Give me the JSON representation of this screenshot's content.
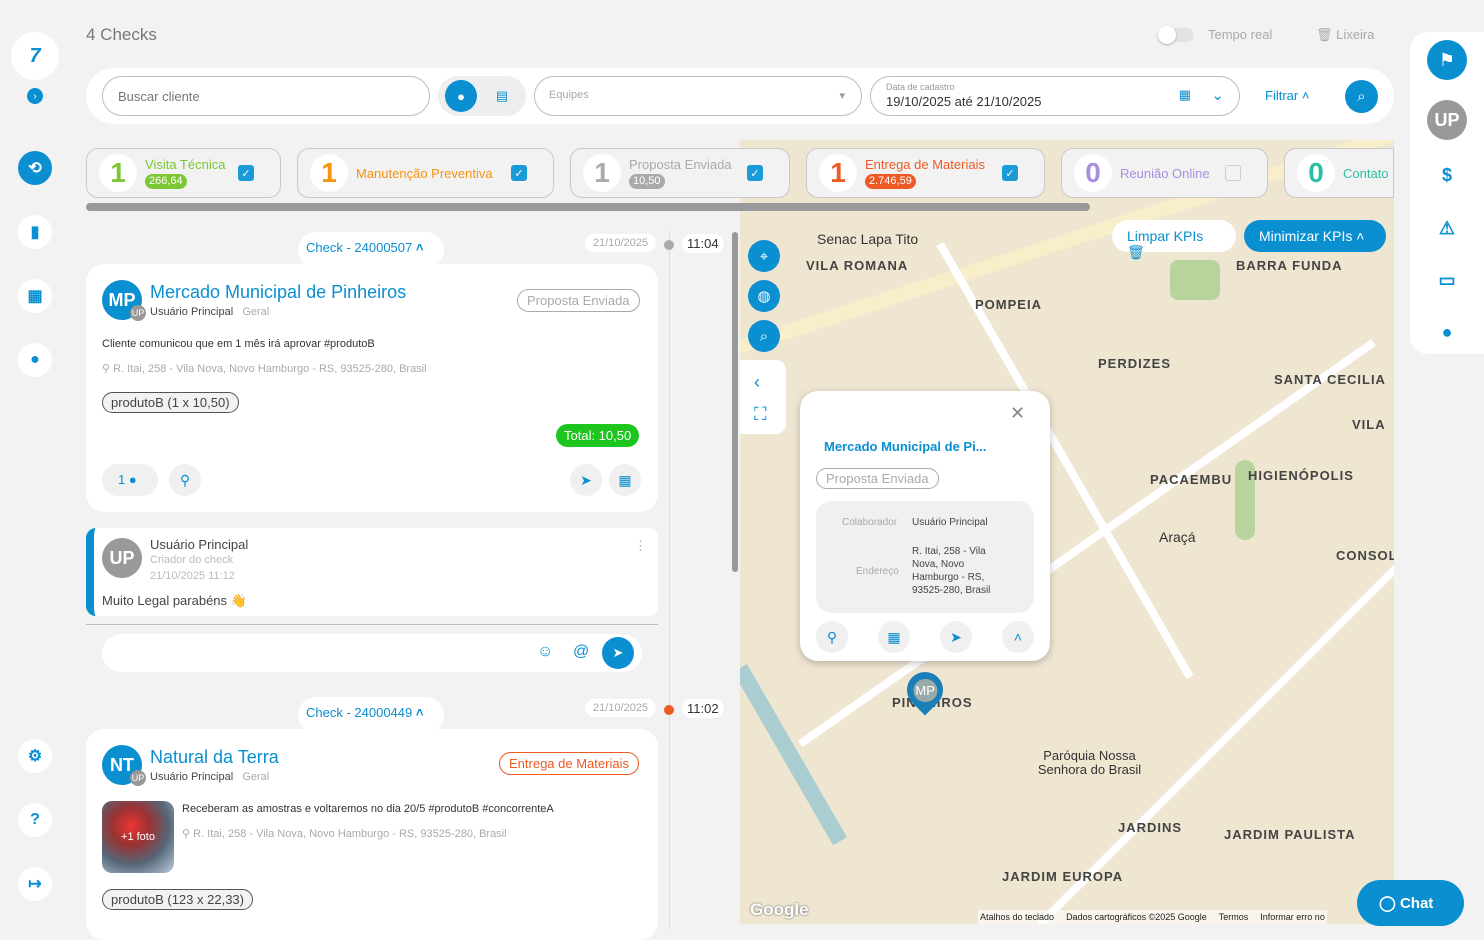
{
  "header": {
    "title": "4 Checks",
    "realtime_label": "Tempo real",
    "trash_label": "Lixeira"
  },
  "filters": {
    "search_placeholder": "Buscar cliente",
    "teams_placeholder": "Equipes",
    "date_label": "Data de cadastro",
    "date_value": "19/10/2025 até 21/10/2025",
    "filter_label": "Filtrar"
  },
  "kpis": [
    {
      "count": "1",
      "label": "Visita Técnica",
      "value": "266,64",
      "color": "#7dc734",
      "checked": true
    },
    {
      "count": "1",
      "label": "Manutenção Preventiva",
      "value": "",
      "color": "#f7930e",
      "checked": true
    },
    {
      "count": "1",
      "label": "Proposta Enviada",
      "value": "10,50",
      "color": "#aaaaaa",
      "checked": true
    },
    {
      "count": "1",
      "label": "Entrega de Materiais",
      "value": "2.746,59",
      "color": "#ee5a24",
      "checked": true
    },
    {
      "count": "0",
      "label": "Reunião Online",
      "value": "",
      "color": "#a98ee0",
      "checked": false
    },
    {
      "count": "0",
      "label": "Contato",
      "value": "",
      "color": "#2bbfa5",
      "checked": false
    }
  ],
  "kpi_actions": {
    "clear": "Limpar KPIs",
    "minimize": "Minimizar KPIs"
  },
  "checks": [
    {
      "id": "Check - 24000507",
      "date": "21/10/2025",
      "time": "11:04",
      "initials": "MP",
      "client": "Mercado Municipal de Pinheiros",
      "user": "Usuário Principal",
      "user_initials": "UP",
      "group": "Geral",
      "status": "Proposta Enviada",
      "note": "Cliente comunicou que em 1 mês irá aprovar #produtoB",
      "address": "R. Itai, 258 - Vila Nova, Novo Hamburgo - RS, 93525-280, Brasil",
      "product": "produtoB (1 x 10,50)",
      "total": "Total: 10,50",
      "comments": "1",
      "comment": {
        "initials": "UP",
        "author": "Usuário Principal",
        "role": "Criador do check",
        "datetime": "21/10/2025 11:12",
        "text": "Muito Legal parabéns 👋"
      }
    },
    {
      "id": "Check - 24000449",
      "date": "21/10/2025",
      "time": "11:02",
      "initials": "NT",
      "client": "Natural da Terra",
      "user": "Usuário Principal",
      "user_initials": "UP",
      "group": "Geral",
      "status": "Entrega de Materiais",
      "note": "Receberam as amostras e voltaremos no dia 20/5 #produtoB #concorrenteA",
      "address": "R. Itai, 258 - Vila Nova, Novo Hamburgo - RS, 93525-280, Brasil",
      "photo_label": "+1 foto",
      "product": "produtoB (123 x 22,33)"
    }
  ],
  "popup": {
    "title": "Mercado Municipal de Pi...",
    "status": "Proposta Enviada",
    "collab_label": "Colaborador",
    "collab": "Usuário Principal",
    "addr_label": "Endereço",
    "addr": "R. Itai, 258 - Vila Nova, Novo Hamburgo - RS, 93525-280, Brasil",
    "pin": "MP"
  },
  "map_labels": [
    "VILA ROMANA",
    "POMPEIA",
    "BARRA FUNDA",
    "PERDIZES",
    "SANTA CECILIA",
    "PACAEMBU",
    "HIGIENÓPOLIS",
    "JARDINS",
    "JARDIM PAULISTA",
    "JARDIM EUROPA",
    "PINHEIROS",
    "CONSOL",
    "VILA"
  ],
  "map_places": [
    "Senac Lapa Tito",
    "Araçá",
    "Paróquia Nossa Senhora do Brasil"
  ],
  "map_footer": [
    "Atalhos do teclado",
    "Dados cartográficos ©2025 Google",
    "Termos",
    "Informar erro no"
  ],
  "map_logo": "Google",
  "chat_label": "Chat",
  "right_nav": {
    "avatar": "UP"
  },
  "colors": {
    "primary": "#0a8fd0",
    "green": "#1ec51e",
    "orange": "#ee5a24"
  }
}
